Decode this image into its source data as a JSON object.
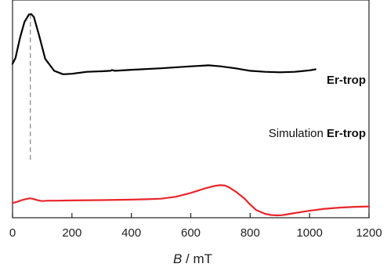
{
  "chart_data": {
    "type": "line",
    "xlabel_italic": "B",
    "xlabel_rest": " / mT",
    "xlim": [
      0,
      1200
    ],
    "xticks": [
      0,
      200,
      400,
      600,
      800,
      1000,
      1200
    ],
    "yaxis_visible": false,
    "grid": false,
    "reference_line": {
      "x": 60,
      "style": "dashed",
      "color": "#8c8c8c"
    },
    "series": [
      {
        "label": "Er-trop",
        "color": "#000000",
        "x": [
          0,
          10,
          25,
          40,
          55,
          63,
          72,
          90,
          110,
          140,
          170,
          200,
          250,
          300,
          330,
          335,
          345,
          400,
          500,
          600,
          660,
          700,
          750,
          800,
          850,
          900,
          950,
          1000,
          1020
        ],
        "y": [
          0.5,
          0.56,
          0.76,
          0.92,
          0.995,
          1.0,
          0.97,
          0.78,
          0.55,
          0.43,
          0.395,
          0.4,
          0.42,
          0.425,
          0.43,
          0.438,
          0.43,
          0.44,
          0.455,
          0.475,
          0.485,
          0.475,
          0.455,
          0.43,
          0.42,
          0.415,
          0.42,
          0.435,
          0.445
        ]
      },
      {
        "label_prefix": "Simulation ",
        "label": "Er-trop",
        "color": "#e8262c",
        "x": [
          0,
          15,
          30,
          45,
          58,
          70,
          85,
          100,
          120,
          150,
          200,
          300,
          400,
          450,
          500,
          550,
          600,
          650,
          680,
          700,
          715,
          730,
          750,
          780,
          800,
          820,
          850,
          870,
          890,
          905,
          920,
          950,
          1000,
          1050,
          1100,
          1150,
          1200
        ],
        "y": [
          0.16,
          0.175,
          0.195,
          0.21,
          0.22,
          0.213,
          0.195,
          0.185,
          0.19,
          0.19,
          0.193,
          0.197,
          0.203,
          0.208,
          0.215,
          0.24,
          0.29,
          0.35,
          0.38,
          0.39,
          0.385,
          0.36,
          0.31,
          0.22,
          0.14,
          0.07,
          0.02,
          0.005,
          0.0,
          0.002,
          0.01,
          0.03,
          0.06,
          0.085,
          0.1,
          0.11,
          0.115
        ]
      }
    ]
  }
}
